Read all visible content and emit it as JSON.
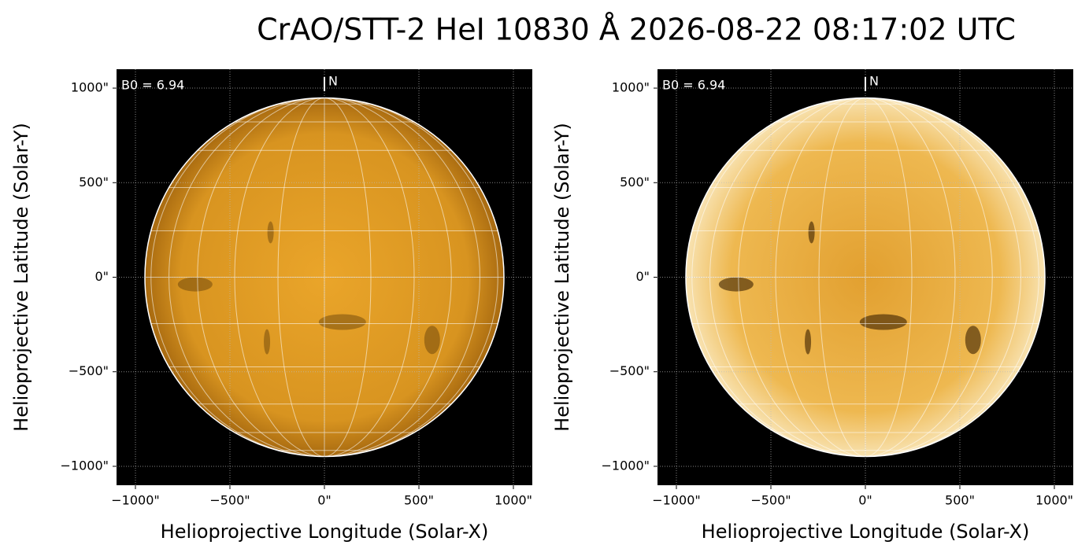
{
  "title": "CrAO/STT-2 HeI 10830 Å 2026-08-22 08:17:02 UTC",
  "chart_data": [
    {
      "type": "image",
      "annotation": "B0 = 6.94",
      "north_label": "N",
      "xlabel": "Helioprojective Longitude (Solar-X)",
      "ylabel": "Helioprojective Latitude (Solar-Y)",
      "xlim": [
        -1100,
        1100
      ],
      "ylim": [
        -1100,
        1100
      ],
      "xticks": [
        {
          "value": -1000,
          "label": "−1000\""
        },
        {
          "value": -500,
          "label": "−500\""
        },
        {
          "value": 0,
          "label": "0\""
        },
        {
          "value": 500,
          "label": "500\""
        },
        {
          "value": 1000,
          "label": "1000\""
        }
      ],
      "yticks": [
        {
          "value": -1000,
          "label": "−1000\""
        },
        {
          "value": -500,
          "label": "−500\""
        },
        {
          "value": 0,
          "label": "0\""
        },
        {
          "value": 500,
          "label": "500\""
        },
        {
          "value": 1000,
          "label": "1000\""
        }
      ],
      "grid": true
    },
    {
      "type": "image",
      "annotation": "B0 = 6.94",
      "north_label": "N",
      "xlabel": "Helioprojective Longitude (Solar-X)",
      "ylabel": "Helioprojective Latitude (Solar-Y)",
      "xlim": [
        -1100,
        1100
      ],
      "ylim": [
        -1100,
        1100
      ],
      "xticks": [
        {
          "value": -1000,
          "label": "−1000\""
        },
        {
          "value": -500,
          "label": "−500\""
        },
        {
          "value": 0,
          "label": "0\""
        },
        {
          "value": 500,
          "label": "500\""
        },
        {
          "value": 1000,
          "label": "1000\""
        }
      ],
      "yticks": [
        {
          "value": -1000,
          "label": "−1000\""
        },
        {
          "value": -500,
          "label": "−500\""
        },
        {
          "value": 0,
          "label": "0\""
        },
        {
          "value": 500,
          "label": "500\""
        },
        {
          "value": 1000,
          "label": "1000\""
        }
      ],
      "grid": true
    }
  ]
}
